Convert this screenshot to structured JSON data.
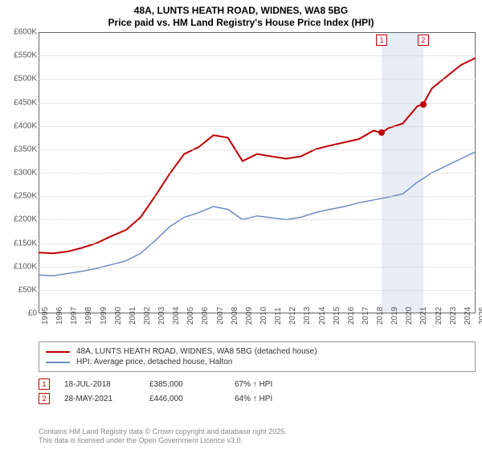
{
  "title": {
    "line1": "48A, LUNTS HEATH ROAD, WIDNES, WA8 5BG",
    "line2": "Price paid vs. HM Land Registry's House Price Index (HPI)"
  },
  "chart": {
    "type": "line",
    "background_color": "#ffffff",
    "grid_color": "#cfcfcf",
    "axis_color": "#666666",
    "label_color": "#555555",
    "label_fontsize": 10,
    "title_fontsize": 12,
    "x": {
      "min": 1995,
      "max": 2025,
      "ticks": [
        1995,
        1996,
        1997,
        1998,
        1999,
        2000,
        2001,
        2002,
        2003,
        2004,
        2005,
        2006,
        2007,
        2008,
        2009,
        2010,
        2011,
        2012,
        2013,
        2014,
        2015,
        2016,
        2017,
        2018,
        2019,
        2020,
        2021,
        2022,
        2023,
        2024,
        2025
      ]
    },
    "y": {
      "min": 0,
      "max": 600,
      "tick_step": 50,
      "unit": "K",
      "prefix": "£",
      "labels": [
        "£0",
        "£50K",
        "£100K",
        "£150K",
        "£200K",
        "£250K",
        "£300K",
        "£350K",
        "£400K",
        "£450K",
        "£500K",
        "£550K",
        "£600K"
      ]
    },
    "shaded_band": {
      "from": 2018.55,
      "to": 2021.4,
      "color": "#e8ecf5"
    },
    "series": [
      {
        "id": "property",
        "label": "48A, LUNTS HEATH ROAD, WIDNES, WA8 5BG (detached house)",
        "color": "#c00000",
        "line_width": 2,
        "points": [
          [
            1995,
            130
          ],
          [
            1996,
            128
          ],
          [
            1997,
            132
          ],
          [
            1998,
            140
          ],
          [
            1999,
            150
          ],
          [
            2000,
            165
          ],
          [
            2001,
            178
          ],
          [
            2002,
            205
          ],
          [
            2003,
            250
          ],
          [
            2004,
            298
          ],
          [
            2005,
            340
          ],
          [
            2006,
            355
          ],
          [
            2007,
            380
          ],
          [
            2008,
            375
          ],
          [
            2009,
            325
          ],
          [
            2010,
            340
          ],
          [
            2011,
            335
          ],
          [
            2012,
            330
          ],
          [
            2013,
            335
          ],
          [
            2014,
            350
          ],
          [
            2015,
            358
          ],
          [
            2016,
            365
          ],
          [
            2017,
            372
          ],
          [
            2018,
            390
          ],
          [
            2018.55,
            385
          ],
          [
            2019,
            395
          ],
          [
            2020,
            405
          ],
          [
            2021,
            442
          ],
          [
            2021.4,
            446
          ],
          [
            2022,
            480
          ],
          [
            2023,
            505
          ],
          [
            2024,
            530
          ],
          [
            2025,
            545
          ]
        ]
      },
      {
        "id": "hpi",
        "label": "HPI: Average price, detached house, Halton",
        "color": "#6d8bc6",
        "line_width": 1.5,
        "points": [
          [
            1995,
            82
          ],
          [
            1996,
            80
          ],
          [
            1997,
            85
          ],
          [
            1998,
            90
          ],
          [
            1999,
            96
          ],
          [
            2000,
            104
          ],
          [
            2001,
            112
          ],
          [
            2002,
            128
          ],
          [
            2003,
            155
          ],
          [
            2004,
            185
          ],
          [
            2005,
            205
          ],
          [
            2006,
            215
          ],
          [
            2007,
            228
          ],
          [
            2008,
            222
          ],
          [
            2009,
            200
          ],
          [
            2010,
            208
          ],
          [
            2011,
            204
          ],
          [
            2012,
            200
          ],
          [
            2013,
            205
          ],
          [
            2014,
            215
          ],
          [
            2015,
            222
          ],
          [
            2016,
            228
          ],
          [
            2017,
            236
          ],
          [
            2018,
            242
          ],
          [
            2019,
            248
          ],
          [
            2020,
            255
          ],
          [
            2021,
            280
          ],
          [
            2022,
            300
          ],
          [
            2023,
            315
          ],
          [
            2024,
            330
          ],
          [
            2025,
            345
          ]
        ]
      }
    ],
    "markers": [
      {
        "n": "1",
        "x": 2018.55,
        "y": 385,
        "box_x": 2018.55,
        "box_y": 595
      },
      {
        "n": "2",
        "x": 2021.4,
        "y": 446,
        "box_x": 2021.4,
        "box_y": 595
      }
    ]
  },
  "legend": {
    "series1": "48A, LUNTS HEATH ROAD, WIDNES, WA8 5BG (detached house)",
    "series2": "HPI: Average price, detached house, Halton"
  },
  "sales": [
    {
      "n": "1",
      "date": "18-JUL-2018",
      "price": "£385,000",
      "pct": "67% ↑ HPI"
    },
    {
      "n": "2",
      "date": "28-MAY-2021",
      "price": "£446,000",
      "pct": "64% ↑ HPI"
    }
  ],
  "footer": {
    "l1": "Contains HM Land Registry data © Crown copyright and database right 2025.",
    "l2": "This data is licensed under the Open Government Licence v3.0."
  }
}
